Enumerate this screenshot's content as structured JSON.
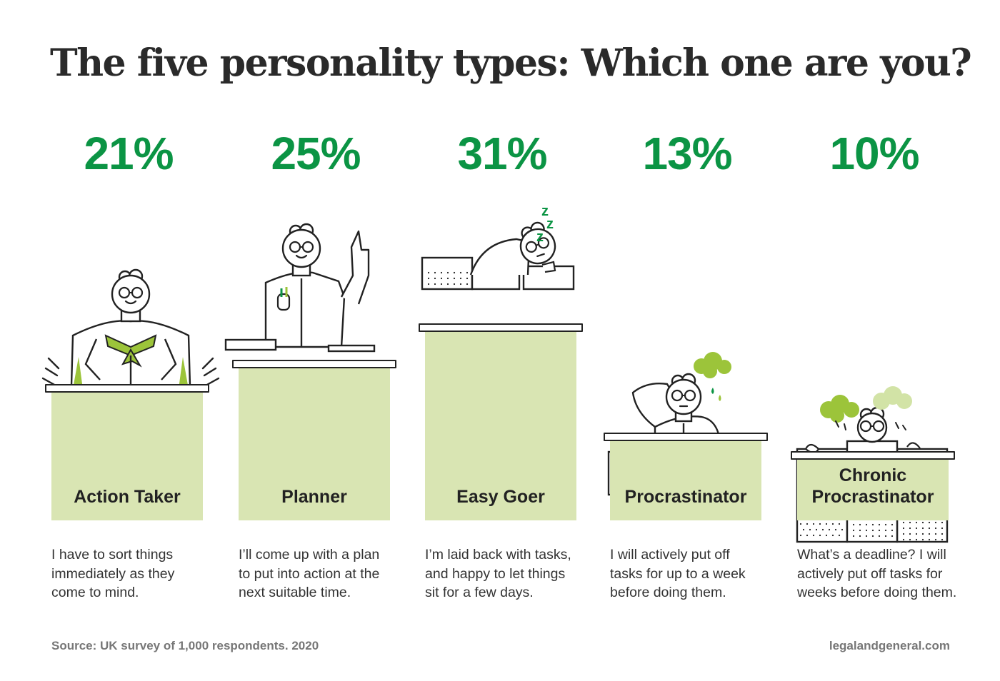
{
  "title": "The five personality types: Which one are you?",
  "colors": {
    "percent": "#0b9444",
    "bar": "#d9e5b3",
    "accent_green": "#9cc43a",
    "outline": "#222222",
    "footer": "#777777"
  },
  "chart_data": {
    "type": "bar",
    "title": "The five personality types: Which one are you?",
    "categories": [
      "Action Taker",
      "Planner",
      "Easy Goer",
      "Procrastinator",
      "Chronic Procrastinator"
    ],
    "values": [
      21,
      25,
      31,
      13,
      10
    ],
    "value_labels": [
      "21%",
      "25%",
      "31%",
      "13%",
      "10%"
    ],
    "unit": "%",
    "xlabel": "",
    "ylabel": "",
    "ylim": [
      0,
      31
    ],
    "grid": false,
    "legend": "none"
  },
  "types": [
    {
      "label": "Action Taker",
      "label_lines": [
        "Action Taker"
      ],
      "desc_lines": [
        "I have to sort things",
        "immediately as they",
        "come to mind."
      ],
      "illustration": "person-hands-on-hips-icon"
    },
    {
      "label": "Planner",
      "label_lines": [
        "Planner"
      ],
      "desc_lines": [
        "I’ll come up with a plan",
        "to put into action at the",
        "next suitable time."
      ],
      "illustration": "person-finger-raised-icon"
    },
    {
      "label": "Easy Goer",
      "label_lines": [
        "Easy Goer"
      ],
      "desc_lines": [
        "I’m laid back with tasks,",
        "and happy to let things",
        "sit for a few days."
      ],
      "illustration": "person-sleeping-icon",
      "sleep_text": [
        "z",
        "z",
        "z"
      ]
    },
    {
      "label": "Procrastinator",
      "label_lines": [
        "Procrastinator"
      ],
      "desc_lines": [
        "I will actively put off",
        "tasks for up to a week",
        "before doing them."
      ],
      "illustration": "person-stressed-icon"
    },
    {
      "label": "Chronic Procrastinator",
      "label_lines": [
        "Chronic",
        "Procrastinator"
      ],
      "desc_lines": [
        "What’s a deadline? I will",
        "actively put off tasks for",
        "weeks before doing them."
      ],
      "illustration": "person-behind-piles-icon"
    }
  ],
  "footer": {
    "source": "Source: UK survey of 1,000 respondents. 2020",
    "website": "legalandgeneral.com"
  }
}
